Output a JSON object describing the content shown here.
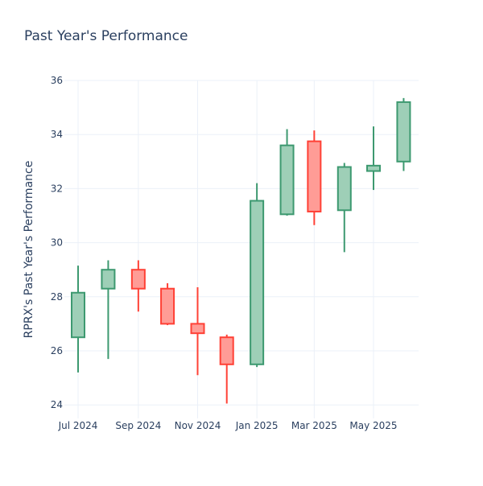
{
  "chart_data": {
    "type": "candlestick",
    "title": "Past Year's Performance",
    "xlabel": "",
    "ylabel": "RPRX's Past Year's Performance",
    "ylim": [
      23.5,
      36
    ],
    "yticks": [
      24,
      26,
      28,
      30,
      32,
      34,
      36
    ],
    "xticks": [
      {
        "label": "Jul 2024",
        "date": "2024-07-01"
      },
      {
        "label": "Sep 2024",
        "date": "2024-09-01"
      },
      {
        "label": "Nov 2024",
        "date": "2024-11-01"
      },
      {
        "label": "Jan 2025",
        "date": "2025-01-01"
      },
      {
        "label": "Mar 2025",
        "date": "2025-03-01"
      },
      {
        "label": "May 2025",
        "date": "2025-05-01"
      }
    ],
    "grid": true,
    "colors": {
      "up": "#3d9970",
      "up_fill": "#9ecfb7",
      "down": "#ff4136",
      "down_fill": "#ff9c96"
    },
    "candles": [
      {
        "date": "2024-07-01",
        "open": 26.5,
        "high": 29.15,
        "low": 25.2,
        "close": 28.15
      },
      {
        "date": "2024-08-01",
        "open": 28.3,
        "high": 29.35,
        "low": 25.7,
        "close": 29.0
      },
      {
        "date": "2024-09-01",
        "open": 29.0,
        "high": 29.35,
        "low": 27.45,
        "close": 28.3
      },
      {
        "date": "2024-10-01",
        "open": 28.3,
        "high": 28.5,
        "low": 26.95,
        "close": 27.0
      },
      {
        "date": "2024-11-01",
        "open": 27.0,
        "high": 28.35,
        "low": 25.1,
        "close": 26.65
      },
      {
        "date": "2024-12-01",
        "open": 26.5,
        "high": 26.6,
        "low": 24.05,
        "close": 25.5
      },
      {
        "date": "2025-01-01",
        "open": 25.5,
        "high": 32.2,
        "low": 25.4,
        "close": 31.55
      },
      {
        "date": "2025-02-01",
        "open": 31.05,
        "high": 34.2,
        "low": 31.0,
        "close": 33.6
      },
      {
        "date": "2025-03-01",
        "open": 33.75,
        "high": 34.15,
        "low": 30.65,
        "close": 31.15
      },
      {
        "date": "2025-04-01",
        "open": 31.2,
        "high": 32.95,
        "low": 29.65,
        "close": 32.8
      },
      {
        "date": "2025-05-01",
        "open": 32.65,
        "high": 34.3,
        "low": 31.95,
        "close": 32.85
      },
      {
        "date": "2025-06-01",
        "open": 33.0,
        "high": 35.35,
        "low": 32.65,
        "close": 35.2
      }
    ]
  }
}
